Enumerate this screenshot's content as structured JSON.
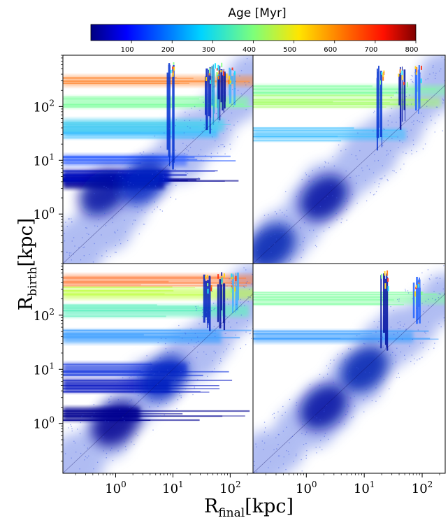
{
  "chart_data": {
    "type": "scatter",
    "layout": "2x2 grid of log-log density scatter panels sharing axes",
    "colorbar": {
      "label": "Age [Myr]",
      "colormap": "jet",
      "range": [
        0,
        800
      ],
      "ticks": [
        "100",
        "200",
        "300",
        "400",
        "500",
        "600",
        "700",
        "800"
      ]
    },
    "xlabel": "R",
    "xlabel_sub": "final",
    "xlabel_unit": "[kpc]",
    "ylabel": "R",
    "ylabel_sub": "birth",
    "ylabel_unit": "[kpc]",
    "xscale": "log",
    "yscale": "log",
    "xlim": [
      0.12,
      250
    ],
    "ylim": [
      0.12,
      900
    ],
    "x_ticks": [
      {
        "value": 1,
        "base": "10",
        "exp": "0"
      },
      {
        "value": 10,
        "base": "10",
        "exp": "1"
      },
      {
        "value": 100,
        "base": "10",
        "exp": "2"
      }
    ],
    "y_ticks": [
      {
        "value": 1,
        "base": "10",
        "exp": "0"
      },
      {
        "value": 10,
        "base": "10",
        "exp": "1"
      },
      {
        "value": 100,
        "base": "10",
        "exp": "2"
      }
    ],
    "panels": [
      {
        "name": "top-left",
        "stripes": [
          {
            "y": 4,
            "color": "#000090",
            "strength": 1.0
          },
          {
            "y": 5,
            "color": "#0010c0",
            "strength": 0.9
          },
          {
            "y": 10,
            "color": "#3060ff",
            "strength": 0.5
          },
          {
            "y": 35,
            "color": "#40c0ff",
            "strength": 0.9
          },
          {
            "y": 45,
            "color": "#50d0f0",
            "strength": 0.7
          },
          {
            "y": 120,
            "color": "#80ffa0",
            "strength": 0.5
          },
          {
            "y": 300,
            "color": "#ff9040",
            "strength": 0.4
          }
        ],
        "columns": [
          {
            "x": 9,
            "color": "#0030d0"
          },
          {
            "x": 40,
            "color": "#0020c0"
          },
          {
            "x": 55,
            "color": "#20a0e0"
          },
          {
            "x": 70,
            "color": "#0010a0"
          },
          {
            "x": 110,
            "color": "#40b0ff"
          }
        ],
        "blobs": [
          {
            "x": 0.6,
            "y": 2.5,
            "color": "#0010a0"
          },
          {
            "x": 3,
            "y": 4,
            "color": "#0020c0"
          }
        ]
      },
      {
        "name": "top-right",
        "stripes": [
          {
            "y": 30,
            "color": "#40c0ff",
            "strength": 0.5
          },
          {
            "y": 200,
            "color": "#80ffa0",
            "strength": 0.4
          },
          {
            "y": 120,
            "color": "#a0ff60",
            "strength": 0.3
          }
        ],
        "columns": [
          {
            "x": 18,
            "color": "#0030d0"
          },
          {
            "x": 45,
            "color": "#0010a0"
          },
          {
            "x": 80,
            "color": "#2060ff"
          }
        ],
        "blobs": [
          {
            "x": 2,
            "y": 2,
            "color": "#0010a0"
          },
          {
            "x": 0.25,
            "y": 0.25,
            "color": "#0020b0"
          }
        ]
      },
      {
        "name": "bottom-left",
        "stripes": [
          {
            "y": 1.5,
            "color": "#000090",
            "strength": 0.9
          },
          {
            "y": 5,
            "color": "#0010c0",
            "strength": 0.8
          },
          {
            "y": 10,
            "color": "#2040e0",
            "strength": 0.7
          },
          {
            "y": 40,
            "color": "#40a0ff",
            "strength": 0.8
          },
          {
            "y": 120,
            "color": "#60f0c0",
            "strength": 0.6
          },
          {
            "y": 250,
            "color": "#c0ff40",
            "strength": 0.5
          },
          {
            "y": 450,
            "color": "#ff8040",
            "strength": 0.4
          }
        ],
        "columns": [
          {
            "x": 40,
            "color": "#0020c0"
          },
          {
            "x": 70,
            "color": "#0010a0"
          },
          {
            "x": 120,
            "color": "#40b0ff"
          }
        ],
        "blobs": [
          {
            "x": 1,
            "y": 1,
            "color": "#000090"
          },
          {
            "x": 7,
            "y": 7,
            "color": "#0020c0"
          }
        ]
      },
      {
        "name": "bottom-right",
        "stripes": [
          {
            "y": 40,
            "color": "#40a0ff",
            "strength": 0.6
          },
          {
            "y": 200,
            "color": "#80ffa0",
            "strength": 0.4
          }
        ],
        "columns": [
          {
            "x": 22,
            "color": "#0010a0"
          },
          {
            "x": 80,
            "color": "#2060ff"
          }
        ],
        "blobs": [
          {
            "x": 2,
            "y": 2,
            "color": "#0010a0"
          },
          {
            "x": 10,
            "y": 10,
            "color": "#0020b0"
          }
        ]
      }
    ]
  }
}
